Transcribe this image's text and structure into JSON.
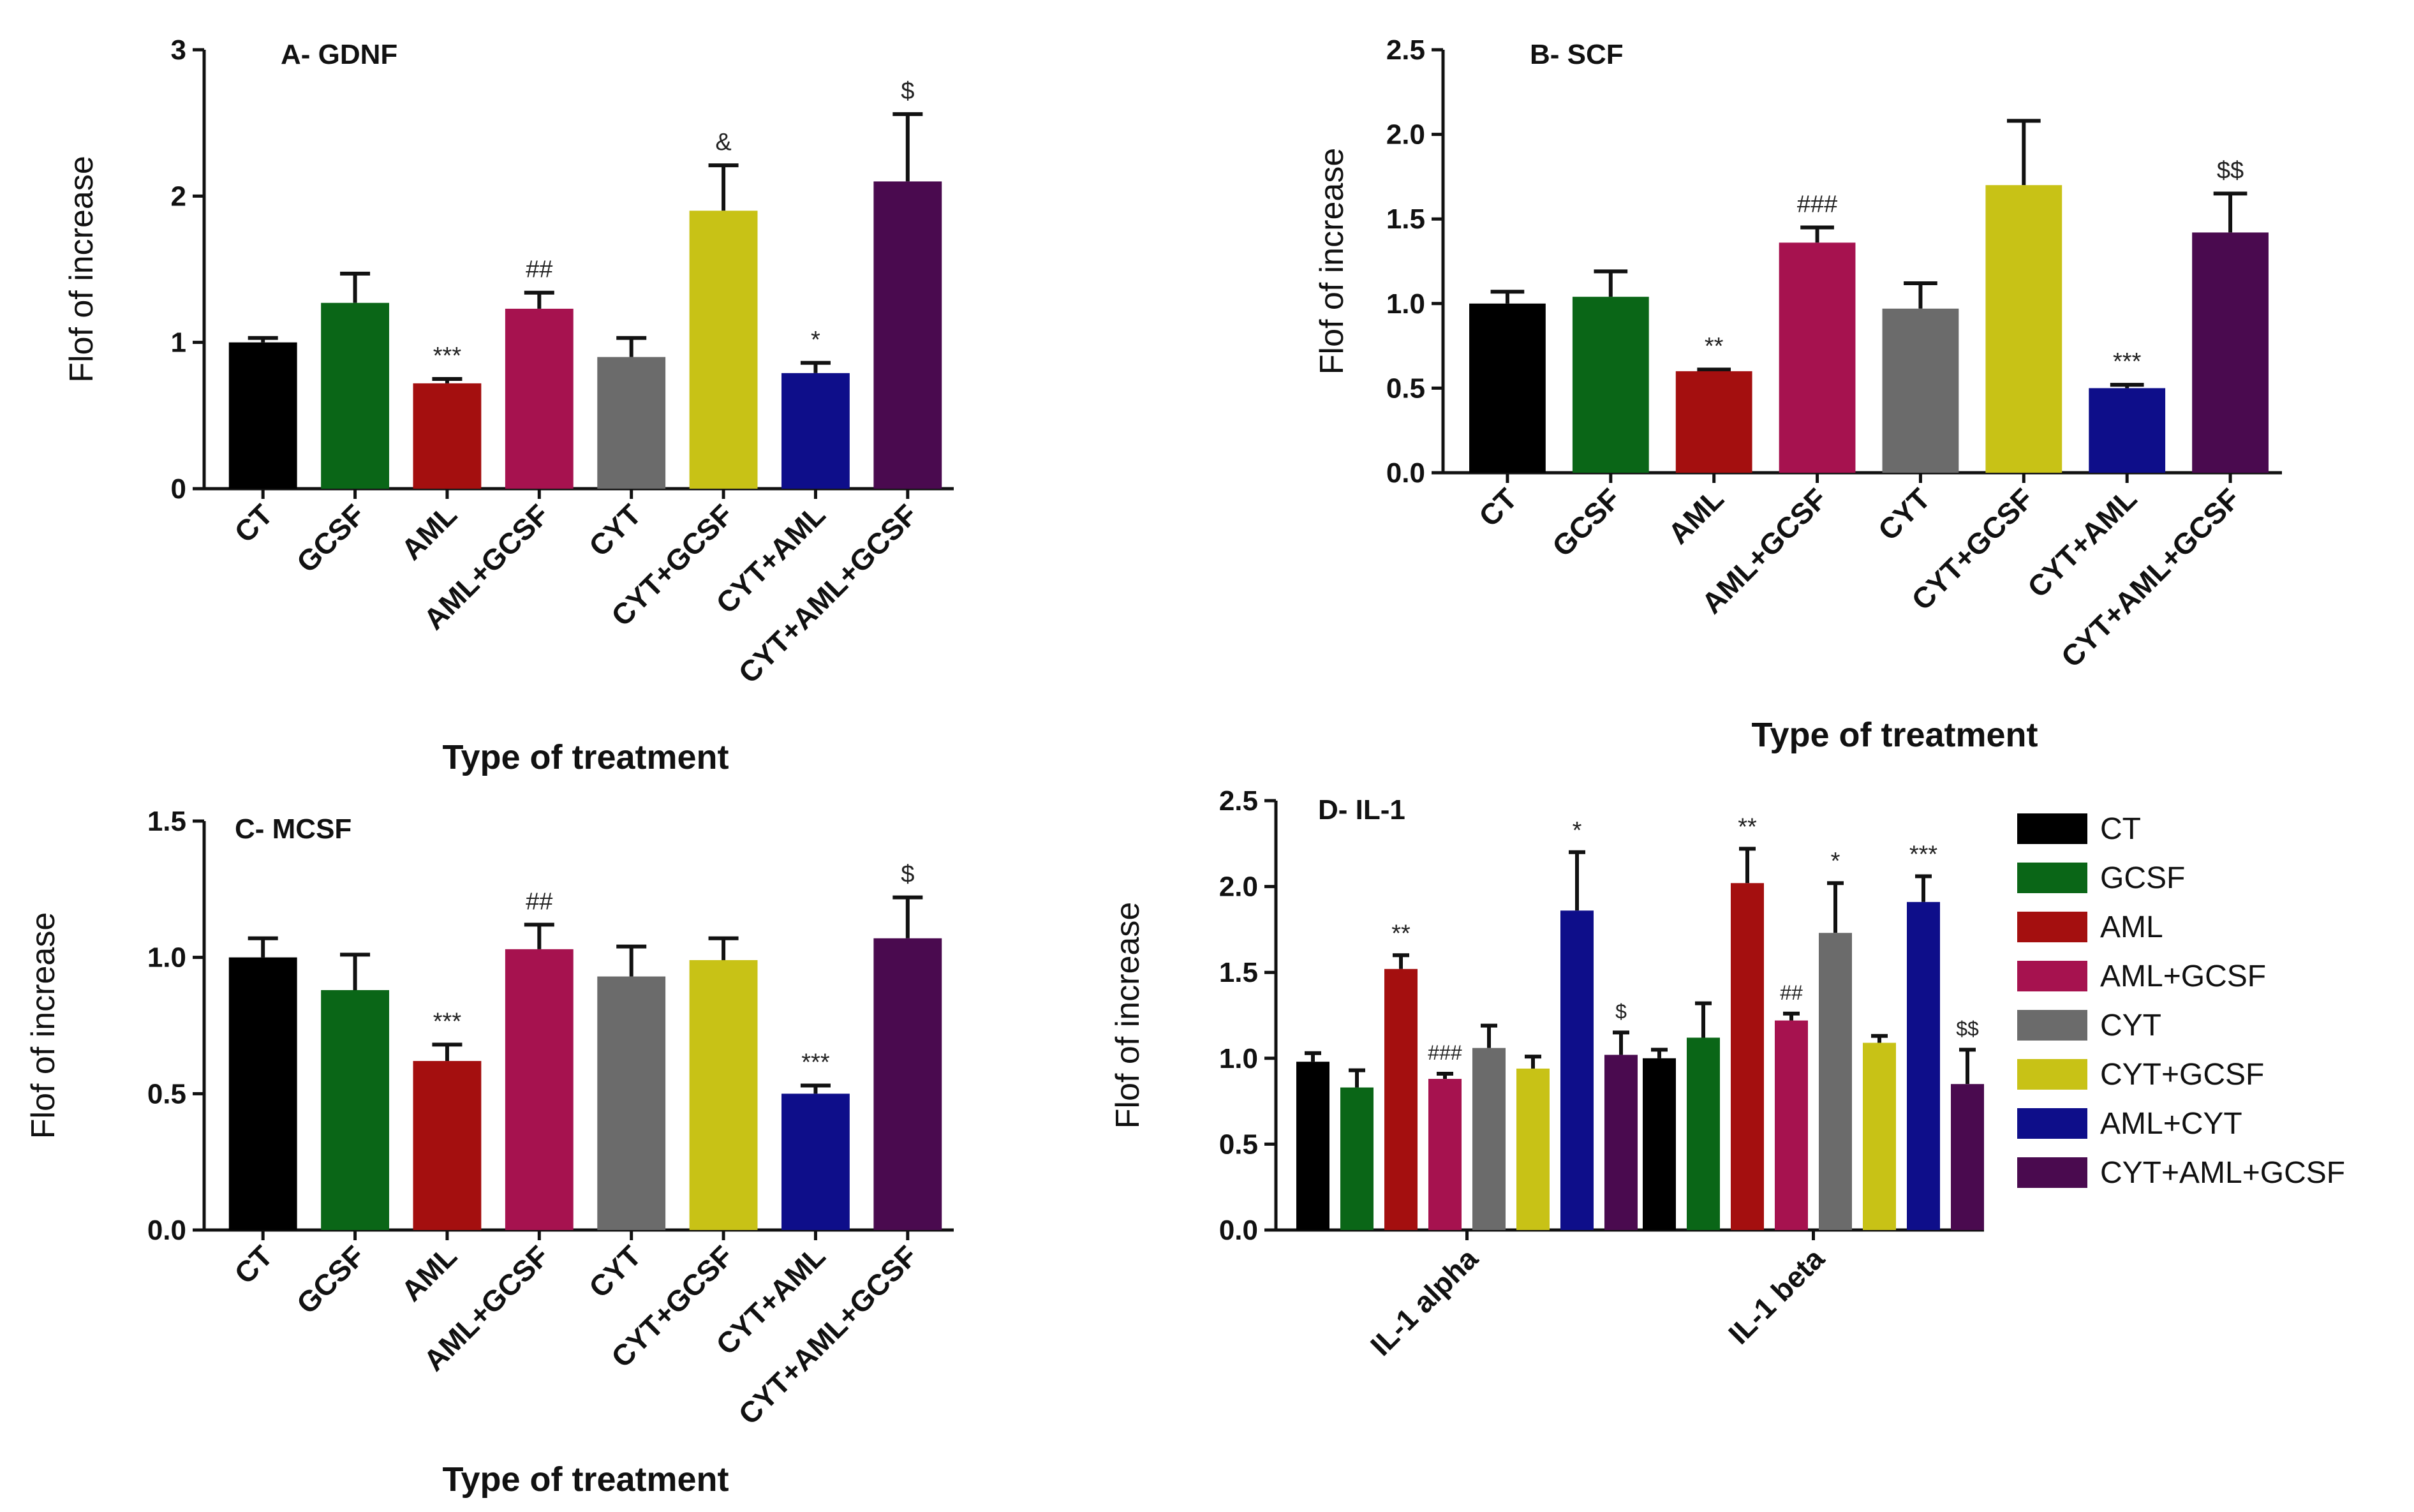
{
  "chart_data": [
    {
      "id": "A",
      "type": "bar",
      "title": "A- GDNF",
      "ylabel": "Flof of increase",
      "xlabel": "Type of treatment",
      "ylim": [
        0,
        3
      ],
      "yticks": [
        "0",
        "1",
        "2",
        "3"
      ],
      "categories": [
        "CT",
        "GCSF",
        "AML",
        "AML+GCSF",
        "CYT",
        "CYT+GCSF",
        "CYT+AML",
        "CYT+AML+GCSF"
      ],
      "values": [
        1.0,
        1.27,
        0.72,
        1.23,
        0.9,
        1.9,
        0.79,
        2.1
      ],
      "errors": [
        0.03,
        0.2,
        0.03,
        0.11,
        0.13,
        0.31,
        0.07,
        0.46
      ],
      "colors": [
        "#000000",
        "#0a6617",
        "#a40f0f",
        "#a6124f",
        "#6b6b6b",
        "#c8c216",
        "#0e0e8a",
        "#4a0a4f"
      ],
      "annotations": [
        "",
        "",
        "***",
        "##",
        "",
        "&",
        "*",
        "$"
      ]
    },
    {
      "id": "B",
      "type": "bar",
      "title": "B- SCF",
      "ylabel": "Flof of increase",
      "xlabel": "Type of treatment",
      "ylim": [
        0,
        2.5
      ],
      "yticks": [
        "0.0",
        "0.5",
        "1.0",
        "1.5",
        "2.0",
        "2.5"
      ],
      "categories": [
        "CT",
        "GCSF",
        "AML",
        "AML+GCSF",
        "CYT",
        "CYT+GCSF",
        "CYT+AML",
        "CYT+AML+GCSF"
      ],
      "values": [
        1.0,
        1.04,
        0.6,
        1.36,
        0.97,
        1.7,
        0.5,
        1.42
      ],
      "errors": [
        0.07,
        0.15,
        0.01,
        0.09,
        0.15,
        0.38,
        0.02,
        0.23
      ],
      "colors": [
        "#000000",
        "#0a6617",
        "#a40f0f",
        "#a6124f",
        "#6b6b6b",
        "#c8c216",
        "#0e0e8a",
        "#4a0a4f"
      ],
      "annotations": [
        "",
        "",
        "**",
        "###",
        "",
        "",
        "***",
        "$$"
      ]
    },
    {
      "id": "C",
      "type": "bar",
      "title": "C- MCSF",
      "ylabel": "Flof of increase",
      "xlabel": "Type of treatment",
      "ylim": [
        0,
        1.5
      ],
      "yticks": [
        "0.0",
        "0.5",
        "1.0",
        "1.5"
      ],
      "categories": [
        "CT",
        "GCSF",
        "AML",
        "AML+GCSF",
        "CYT",
        "CYT+GCSF",
        "CYT+AML",
        "CYT+AML+GCSF"
      ],
      "values": [
        1.0,
        0.88,
        0.62,
        1.03,
        0.93,
        0.99,
        0.5,
        1.07
      ],
      "errors": [
        0.07,
        0.13,
        0.06,
        0.09,
        0.11,
        0.08,
        0.03,
        0.15
      ],
      "colors": [
        "#000000",
        "#0a6617",
        "#a40f0f",
        "#a6124f",
        "#6b6b6b",
        "#c8c216",
        "#0e0e8a",
        "#4a0a4f"
      ],
      "annotations": [
        "",
        "",
        "***",
        "##",
        "",
        "",
        "***",
        "$"
      ]
    },
    {
      "id": "D",
      "type": "grouped_bar",
      "title": "D- IL-1",
      "ylabel": "Flof of increase",
      "ylim": [
        0,
        2.5
      ],
      "yticks": [
        "0.0",
        "0.5",
        "1.0",
        "1.5",
        "2.0",
        "2.5"
      ],
      "groups": [
        "IL-1 alpha",
        "IL-1 beta"
      ],
      "series": [
        {
          "name": "CT",
          "color": "#000000",
          "values": [
            0.98,
            1.0
          ],
          "errors": [
            0.05,
            0.05
          ],
          "annotations": [
            "",
            ""
          ]
        },
        {
          "name": "GCSF",
          "color": "#0a6617",
          "values": [
            0.83,
            1.12
          ],
          "errors": [
            0.1,
            0.2
          ],
          "annotations": [
            "",
            ""
          ]
        },
        {
          "name": "AML",
          "color": "#a40f0f",
          "values": [
            1.52,
            2.02
          ],
          "errors": [
            0.08,
            0.2
          ],
          "annotations": [
            "**",
            "**"
          ]
        },
        {
          "name": "AML+GCSF",
          "color": "#a6124f",
          "values": [
            0.88,
            1.22
          ],
          "errors": [
            0.03,
            0.04
          ],
          "annotations": [
            "###",
            "##"
          ]
        },
        {
          "name": "CYT",
          "color": "#6b6b6b",
          "values": [
            1.06,
            1.73
          ],
          "errors": [
            0.13,
            0.29
          ],
          "annotations": [
            "",
            "*"
          ]
        },
        {
          "name": "CYT+GCSF",
          "color": "#c8c216",
          "values": [
            0.94,
            1.09
          ],
          "errors": [
            0.07,
            0.04
          ],
          "annotations": [
            "",
            ""
          ]
        },
        {
          "name": "AML+CYT",
          "color": "#0e0e8a",
          "values": [
            1.86,
            1.91
          ],
          "errors": [
            0.34,
            0.15
          ],
          "annotations": [
            "*",
            "***"
          ]
        },
        {
          "name": "CYT+AML+GCSF",
          "color": "#4a0a4f",
          "values": [
            1.02,
            0.85
          ],
          "errors": [
            0.13,
            0.2
          ],
          "annotations": [
            "$",
            "$$"
          ]
        }
      ]
    }
  ]
}
